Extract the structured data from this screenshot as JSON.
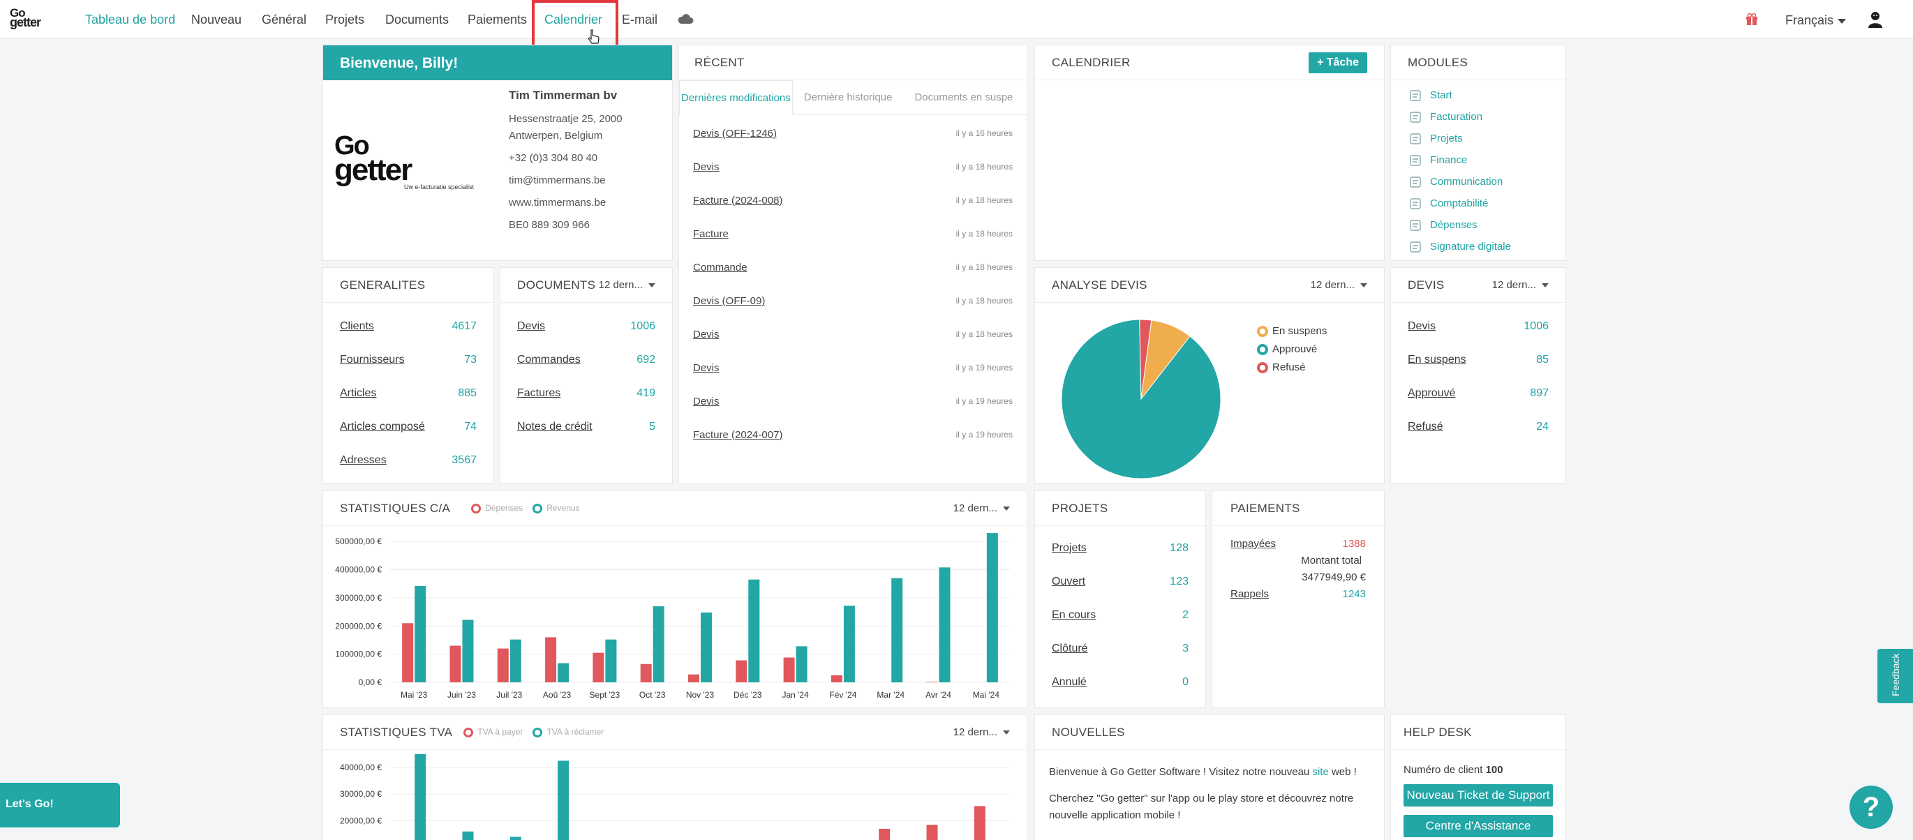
{
  "app": {
    "logo_line1": "Go",
    "logo_line2": "getter"
  },
  "nav": {
    "items": [
      "Tableau de bord",
      "Nouveau",
      "Général",
      "Projets",
      "Documents",
      "Paiements",
      "Calendrier",
      "E-mail"
    ],
    "active": "Calendrier",
    "language": "Français"
  },
  "welcome": {
    "title": "Bienvenue, Billy!",
    "logo_line1": "Go",
    "logo_line2": "getter",
    "logo_tagline": "Uw e-facturatie specialist",
    "company": "Tim Timmerman bv",
    "address1": "Hessenstraatje 25, 2000",
    "address2": "Antwerpen, Belgium",
    "phone": "+32 (0)3 304 80 40",
    "email": "tim@timmermans.be",
    "website": "www.timmermans.be",
    "vat": "BE0 889 309 966"
  },
  "recent": {
    "title": "RÉCENT",
    "tabs": [
      "Dernières modifications",
      "Dernière historique",
      "Documents en suspe"
    ],
    "items": [
      {
        "label": "Devis (OFF-1246)",
        "time": "il y a 16 heures"
      },
      {
        "label": "Devis",
        "time": "il y a 18 heures"
      },
      {
        "label": "Facture (2024-008)",
        "time": "il y a 18 heures"
      },
      {
        "label": "Facture",
        "time": "il y a 18 heures"
      },
      {
        "label": "Commande",
        "time": "il y a 18 heures"
      },
      {
        "label": "Devis (OFF-09)",
        "time": "il y a 18 heures"
      },
      {
        "label": "Devis",
        "time": "il y a 18 heures"
      },
      {
        "label": "Devis",
        "time": "il y a 19 heures"
      },
      {
        "label": "Devis",
        "time": "il y a 19 heures"
      },
      {
        "label": "Facture (2024-007)",
        "time": "il y a 19 heures"
      }
    ]
  },
  "calendar": {
    "title": "CALENDRIER",
    "task_button": "+ Tâche"
  },
  "modules": {
    "title": "MODULES",
    "items": [
      "Start",
      "Facturation",
      "Projets",
      "Finance",
      "Communication",
      "Comptabilité",
      "Dépenses",
      "Signature digitale"
    ]
  },
  "generalites": {
    "title": "GENERALITES",
    "rows": [
      {
        "label": "Clients",
        "value": "4617"
      },
      {
        "label": "Fournisseurs",
        "value": "73"
      },
      {
        "label": "Articles",
        "value": "885"
      },
      {
        "label": "Articles composé",
        "value": "74"
      },
      {
        "label": "Adresses",
        "value": "3567"
      }
    ]
  },
  "documents": {
    "title": "DOCUMENTS",
    "period": "12 dern...",
    "rows": [
      {
        "label": "Devis",
        "value": "1006"
      },
      {
        "label": "Commandes",
        "value": "692"
      },
      {
        "label": "Factures",
        "value": "419"
      },
      {
        "label": "Notes de crédit",
        "value": "5"
      }
    ]
  },
  "analyse": {
    "title": "ANALYSE DEVIS",
    "period": "12 dern...",
    "legend": [
      {
        "label": "En suspens",
        "color": "#f0ad4e"
      },
      {
        "label": "Approuvé",
        "color": "#22a6a6"
      },
      {
        "label": "Refusé",
        "color": "#e0585b"
      }
    ]
  },
  "devis": {
    "title": "DEVIS",
    "period": "12 dern...",
    "rows": [
      {
        "label": "Devis",
        "value": "1006"
      },
      {
        "label": "En suspens",
        "value": "85"
      },
      {
        "label": "Approuvé",
        "value": "897"
      },
      {
        "label": "Refusé",
        "value": "24"
      }
    ]
  },
  "projets": {
    "title": "PROJETS",
    "rows": [
      {
        "label": "Projets",
        "value": "128"
      },
      {
        "label": "Ouvert",
        "value": "123"
      },
      {
        "label": "En cours",
        "value": "2"
      },
      {
        "label": "Clôturé",
        "value": "3"
      },
      {
        "label": "Annulé",
        "value": "0"
      }
    ]
  },
  "paiements": {
    "title": "PAIEMENTS",
    "impayees_label": "Impayées",
    "impayees_value": "1388",
    "total_label": "Montant total",
    "total_value": "3477949,90 €",
    "rappels_label": "Rappels",
    "rappels_value": "1243"
  },
  "stats_ca": {
    "title": "STATISTIQUES C/A",
    "period": "12 dern..."
  },
  "stats_tva": {
    "title": "STATISTIQUES TVA",
    "period": "12 dern..."
  },
  "nouvelles": {
    "title": "NOUVELLES",
    "p1_before": "Bienvenue à Go Getter Software ! Visitez notre nouveau ",
    "p1_link": "site",
    "p1_after": " web !",
    "p2": "Cherchez \"Go getter\" sur l'app ou le play store et découvrez notre nouvelle application mobile !"
  },
  "helpdesk": {
    "title": "HELP DESK",
    "client_label": "Numéro de client",
    "client_number": "100",
    "ticket_button": "Nouveau Ticket de Support",
    "center_button": "Centre d'Assistance"
  },
  "feedback": "Feedback",
  "lets_go": "Let's Go!",
  "help_symbol": "?",
  "chart_data": [
    {
      "type": "pie",
      "title": "ANALYSE DEVIS",
      "categories": [
        "En suspens",
        "Approuvé",
        "Refusé"
      ],
      "values": [
        85,
        897,
        24
      ],
      "colors": [
        "#f0ad4e",
        "#22a6a6",
        "#e0585b"
      ]
    },
    {
      "type": "bar",
      "title": "STATISTIQUES C/A",
      "categories": [
        "Mai '23",
        "Juin '23",
        "Juil '23",
        "Aoû '23",
        "Sept '23",
        "Oct '23",
        "Nov '23",
        "Déc '23",
        "Jan '24",
        "Fév '24",
        "Mar '24",
        "Avr '24",
        "Mai '24"
      ],
      "series": [
        {
          "name": "Dépenses",
          "color": "#e0585b",
          "values": [
            210000,
            130000,
            120000,
            160000,
            105000,
            65000,
            28000,
            78000,
            88000,
            25000,
            0,
            2000,
            0
          ]
        },
        {
          "name": "Revenus",
          "color": "#22a6a6",
          "values": [
            342000,
            222000,
            152000,
            68000,
            152000,
            270000,
            248000,
            365000,
            128000,
            272000,
            370000,
            408000,
            530000
          ]
        }
      ],
      "yticks": [
        "500000,00 €",
        "400000,00 €",
        "300000,00 €",
        "200000,00 €",
        "100000,00 €",
        "0,00 €"
      ],
      "ylim": [
        0,
        550000
      ]
    },
    {
      "type": "bar",
      "title": "STATISTIQUES TVA",
      "series": [
        {
          "name": "TVA à payer",
          "color": "#e0585b"
        },
        {
          "name": "TVA à réclamer",
          "color": "#22a6a6"
        }
      ],
      "yticks": [
        "40000,00 €",
        "30000,00 €",
        "20000,00 €"
      ]
    }
  ]
}
